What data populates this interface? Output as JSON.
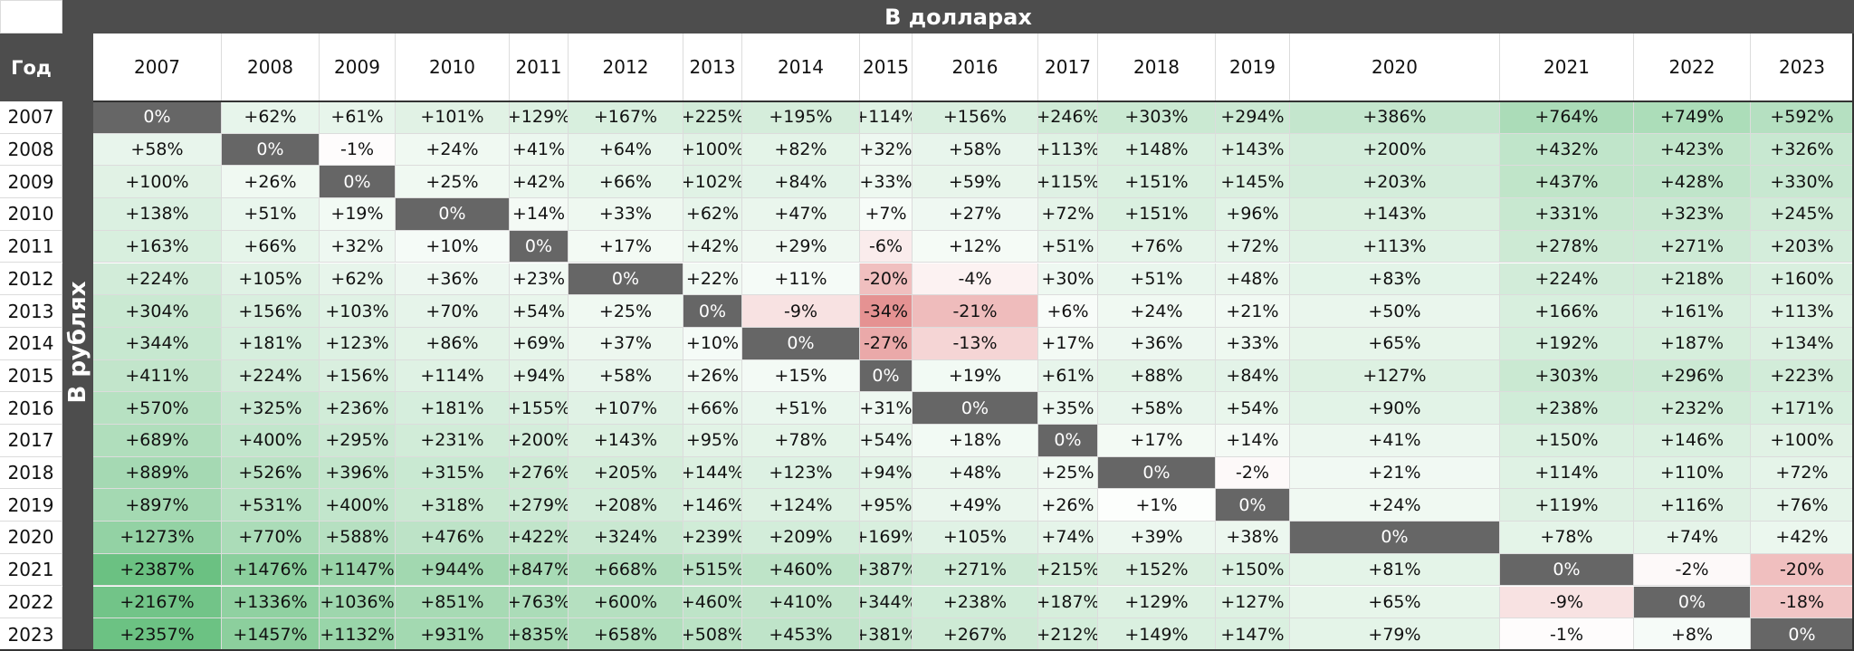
{
  "header": {
    "top_title": "В долларах",
    "year_col_label": "Год",
    "side_title": "В рублях"
  },
  "colors": {
    "header_bg": "#4d4d4d",
    "diagonal_bg": "#666666",
    "positive_max": "#63be7b",
    "negative_max": "#e07f7f",
    "neutral": "#ffffff"
  },
  "chart_data": {
    "type": "table",
    "title": "",
    "column_group_label": "В долларах",
    "row_group_label": "В рублях",
    "row_header_label": "Год",
    "columns": [
      "2007",
      "2008",
      "2009",
      "2010",
      "2011",
      "2012",
      "2013",
      "2014",
      "2015",
      "2016",
      "2017",
      "2018",
      "2019",
      "2020",
      "2021",
      "2022",
      "2023"
    ],
    "rows": [
      {
        "year": "2007",
        "values": [
          "0%",
          "+62%",
          "+61%",
          "+101%",
          "+129%",
          "+167%",
          "+225%",
          "+195%",
          "+114%",
          "+156%",
          "+246%",
          "+303%",
          "+294%",
          "+386%",
          "+764%",
          "+749%",
          "+592%"
        ]
      },
      {
        "year": "2008",
        "values": [
          "+58%",
          "0%",
          "-1%",
          "+24%",
          "+41%",
          "+64%",
          "+100%",
          "+82%",
          "+32%",
          "+58%",
          "+113%",
          "+148%",
          "+143%",
          "+200%",
          "+432%",
          "+423%",
          "+326%"
        ]
      },
      {
        "year": "2009",
        "values": [
          "+100%",
          "+26%",
          "0%",
          "+25%",
          "+42%",
          "+66%",
          "+102%",
          "+84%",
          "+33%",
          "+59%",
          "+115%",
          "+151%",
          "+145%",
          "+203%",
          "+437%",
          "+428%",
          "+330%"
        ]
      },
      {
        "year": "2010",
        "values": [
          "+138%",
          "+51%",
          "+19%",
          "0%",
          "+14%",
          "+33%",
          "+62%",
          "+47%",
          "+7%",
          "+27%",
          "+72%",
          "+151%",
          "+96%",
          "+143%",
          "+331%",
          "+323%",
          "+245%"
        ]
      },
      {
        "year": "2011",
        "values": [
          "+163%",
          "+66%",
          "+32%",
          "+10%",
          "0%",
          "+17%",
          "+42%",
          "+29%",
          "-6%",
          "+12%",
          "+51%",
          "+76%",
          "+72%",
          "+113%",
          "+278%",
          "+271%",
          "+203%"
        ]
      },
      {
        "year": "2012",
        "values": [
          "+224%",
          "+105%",
          "+62%",
          "+36%",
          "+23%",
          "0%",
          "+22%",
          "+11%",
          "-20%",
          "-4%",
          "+30%",
          "+51%",
          "+48%",
          "+83%",
          "+224%",
          "+218%",
          "+160%"
        ]
      },
      {
        "year": "2013",
        "values": [
          "+304%",
          "+156%",
          "+103%",
          "+70%",
          "+54%",
          "+25%",
          "0%",
          "-9%",
          "-34%",
          "-21%",
          "+6%",
          "+24%",
          "+21%",
          "+50%",
          "+166%",
          "+161%",
          "+113%"
        ]
      },
      {
        "year": "2014",
        "values": [
          "+344%",
          "+181%",
          "+123%",
          "+86%",
          "+69%",
          "+37%",
          "+10%",
          "0%",
          "-27%",
          "-13%",
          "+17%",
          "+36%",
          "+33%",
          "+65%",
          "+192%",
          "+187%",
          "+134%"
        ]
      },
      {
        "year": "2015",
        "values": [
          "+411%",
          "+224%",
          "+156%",
          "+114%",
          "+94%",
          "+58%",
          "+26%",
          "+15%",
          "0%",
          "+19%",
          "+61%",
          "+88%",
          "+84%",
          "+127%",
          "+303%",
          "+296%",
          "+223%"
        ]
      },
      {
        "year": "2016",
        "values": [
          "+570%",
          "+325%",
          "+236%",
          "+181%",
          "+155%",
          "+107%",
          "+66%",
          "+51%",
          "+31%",
          "0%",
          "+35%",
          "+58%",
          "+54%",
          "+90%",
          "+238%",
          "+232%",
          "+171%"
        ]
      },
      {
        "year": "2017",
        "values": [
          "+689%",
          "+400%",
          "+295%",
          "+231%",
          "+200%",
          "+143%",
          "+95%",
          "+78%",
          "+54%",
          "+18%",
          "0%",
          "+17%",
          "+14%",
          "+41%",
          "+150%",
          "+146%",
          "+100%"
        ]
      },
      {
        "year": "2018",
        "values": [
          "+889%",
          "+526%",
          "+396%",
          "+315%",
          "+276%",
          "+205%",
          "+144%",
          "+123%",
          "+94%",
          "+48%",
          "+25%",
          "0%",
          "-2%",
          "+21%",
          "+114%",
          "+110%",
          "+72%"
        ]
      },
      {
        "year": "2019",
        "values": [
          "+897%",
          "+531%",
          "+400%",
          "+318%",
          "+279%",
          "+208%",
          "+146%",
          "+124%",
          "+95%",
          "+49%",
          "+26%",
          "+1%",
          "0%",
          "+24%",
          "+119%",
          "+116%",
          "+76%"
        ]
      },
      {
        "year": "2020",
        "values": [
          "+1273%",
          "+770%",
          "+588%",
          "+476%",
          "+422%",
          "+324%",
          "+239%",
          "+209%",
          "+169%",
          "+105%",
          "+74%",
          "+39%",
          "+38%",
          "0%",
          "+78%",
          "+74%",
          "+42%"
        ]
      },
      {
        "year": "2021",
        "values": [
          "+2387%",
          "+1476%",
          "+1147%",
          "+944%",
          "+847%",
          "+668%",
          "+515%",
          "+460%",
          "+387%",
          "+271%",
          "+215%",
          "+152%",
          "+150%",
          "+81%",
          "0%",
          "-2%",
          "-20%"
        ]
      },
      {
        "year": "2022",
        "values": [
          "+2167%",
          "+1336%",
          "+1036%",
          "+851%",
          "+763%",
          "+600%",
          "+460%",
          "+410%",
          "+344%",
          "+238%",
          "+187%",
          "+129%",
          "+127%",
          "+65%",
          "-9%",
          "0%",
          "-18%"
        ]
      },
      {
        "year": "2023",
        "values": [
          "+2357%",
          "+1457%",
          "+1132%",
          "+931%",
          "+835%",
          "+658%",
          "+508%",
          "+453%",
          "+381%",
          "+267%",
          "+212%",
          "+149%",
          "+147%",
          "+79%",
          "-1%",
          "+8%",
          "0%"
        ]
      }
    ]
  }
}
